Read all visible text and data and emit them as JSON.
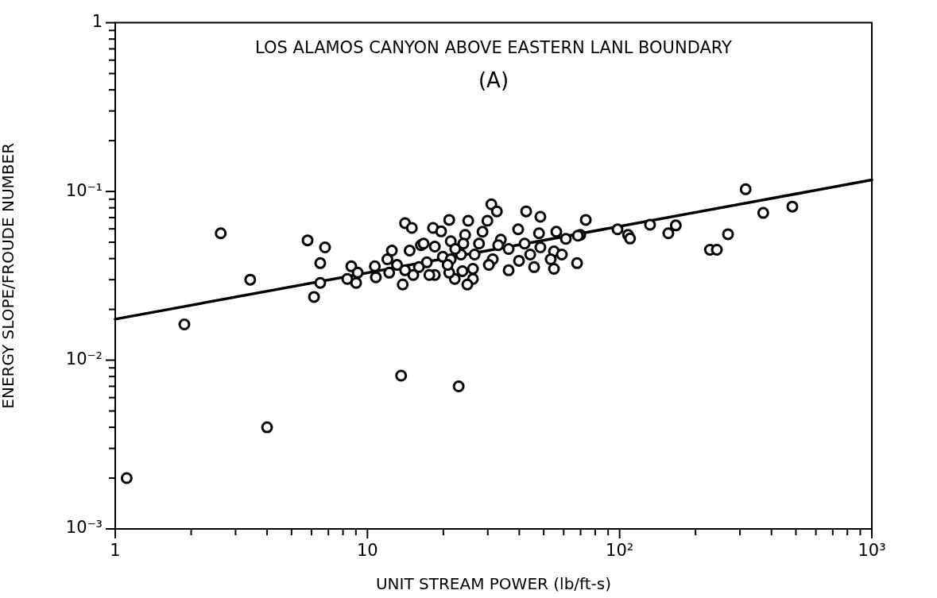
{
  "chart_data": {
    "type": "scatter",
    "title": "LOS ALAMOS CANYON ABOVE EASTERN LANL BOUNDARY",
    "subtitle": "(A)",
    "xlabel": "UNIT STREAM POWER (lb/ft-s)",
    "ylabel": "ENERGY SLOPE/FROUDE NUMBER",
    "log": "xy",
    "grid": false,
    "legend": false,
    "xlim": [
      1,
      1000
    ],
    "ylim": [
      0.001,
      1
    ],
    "xticks": [
      {
        "value": 1,
        "label": "1"
      },
      {
        "value": 2,
        "label": null
      },
      {
        "value": 3,
        "label": null
      },
      {
        "value": 4,
        "label": null
      },
      {
        "value": 5,
        "label": null
      },
      {
        "value": 6,
        "label": null
      },
      {
        "value": 7,
        "label": null
      },
      {
        "value": 8,
        "label": null
      },
      {
        "value": 9,
        "label": null
      },
      {
        "value": 10,
        "label": "10"
      },
      {
        "value": 20,
        "label": null
      },
      {
        "value": 30,
        "label": null
      },
      {
        "value": 40,
        "label": null
      },
      {
        "value": 50,
        "label": null
      },
      {
        "value": 60,
        "label": null
      },
      {
        "value": 70,
        "label": null
      },
      {
        "value": 80,
        "label": null
      },
      {
        "value": 90,
        "label": null
      },
      {
        "value": 100,
        "label": "10²"
      },
      {
        "value": 200,
        "label": null
      },
      {
        "value": 300,
        "label": null
      },
      {
        "value": 400,
        "label": null
      },
      {
        "value": 500,
        "label": null
      },
      {
        "value": 600,
        "label": null
      },
      {
        "value": 700,
        "label": null
      },
      {
        "value": 800,
        "label": null
      },
      {
        "value": 900,
        "label": null
      },
      {
        "value": 1000,
        "label": "10³"
      }
    ],
    "yticks": [
      {
        "value": 0.001,
        "label": "10⁻³"
      },
      {
        "value": 0.002,
        "label": null
      },
      {
        "value": 0.003,
        "label": null
      },
      {
        "value": 0.004,
        "label": null
      },
      {
        "value": 0.005,
        "label": null
      },
      {
        "value": 0.006,
        "label": null
      },
      {
        "value": 0.007,
        "label": null
      },
      {
        "value": 0.008,
        "label": null
      },
      {
        "value": 0.009,
        "label": null
      },
      {
        "value": 0.01,
        "label": "10⁻²"
      },
      {
        "value": 0.02,
        "label": null
      },
      {
        "value": 0.03,
        "label": null
      },
      {
        "value": 0.04,
        "label": null
      },
      {
        "value": 0.05,
        "label": null
      },
      {
        "value": 0.06,
        "label": null
      },
      {
        "value": 0.07,
        "label": null
      },
      {
        "value": 0.08,
        "label": null
      },
      {
        "value": 0.09,
        "label": null
      },
      {
        "value": 0.1,
        "label": "10⁻¹"
      },
      {
        "value": 0.2,
        "label": null
      },
      {
        "value": 0.3,
        "label": null
      },
      {
        "value": 0.4,
        "label": null
      },
      {
        "value": 0.5,
        "label": null
      },
      {
        "value": 0.6,
        "label": null
      },
      {
        "value": 0.7,
        "label": null
      },
      {
        "value": 0.8,
        "label": null
      },
      {
        "value": 0.9,
        "label": null
      },
      {
        "value": 1,
        "label": "1"
      }
    ],
    "series": [
      {
        "type": "scatter",
        "color": "#000000",
        "marker": "circle",
        "x": [
          1.11,
          1.88,
          2.62,
          3.43,
          4.0,
          5.79,
          6.79,
          6.5,
          6.5,
          6.14,
          8.63,
          8.32,
          9.15,
          9.02,
          10.7,
          10.8,
          12.0,
          12.5,
          14.1,
          15.0,
          13.8,
          14.7,
          13.1,
          16.3,
          12.2,
          15.2,
          18.2,
          21.1,
          19.6,
          21.4,
          22.2,
          18.5,
          19.9,
          17.2,
          31.0,
          32.6,
          42.6,
          48.5,
          25.1,
          29.9,
          73.4,
          39.6,
          47.9,
          69.8,
          98.1,
          56.1,
          28.6,
          24.4,
          33.8,
          61.2,
          68.3,
          48.5,
          54.9,
          59.0,
          44.2,
          39.9,
          53.3,
          45.8,
          54.9,
          67.8,
          36.3,
          31.4,
          26.6,
          23.5,
          21.4,
          21.1,
          26.2,
          23.8,
          26.2,
          24.9,
          30.3,
          36.3,
          27.7,
          24.0,
          33.0,
          42.0,
          16.7,
          18.5,
          22.3,
          16.0,
          17.6,
          14.1,
          20.8,
          13.6,
          23.0,
          132,
          108,
          110,
          167,
          156,
          316,
          371,
          484,
          269,
          228,
          243
        ],
        "values": [
          0.002,
          0.0163,
          0.0565,
          0.03,
          0.004,
          0.0513,
          0.0466,
          0.0376,
          0.0287,
          0.0237,
          0.036,
          0.0303,
          0.033,
          0.0287,
          0.036,
          0.031,
          0.0396,
          0.0446,
          0.0649,
          0.0608,
          0.0281,
          0.0446,
          0.0367,
          0.048,
          0.033,
          0.032,
          0.0608,
          0.0678,
          0.058,
          0.0507,
          0.0303,
          0.032,
          0.041,
          0.038,
          0.0839,
          0.0762,
          0.0762,
          0.0708,
          0.067,
          0.067,
          0.0678,
          0.0596,
          0.0565,
          0.0553,
          0.0596,
          0.0577,
          0.0577,
          0.0553,
          0.0518,
          0.0524,
          0.0547,
          0.0466,
          0.0441,
          0.0423,
          0.0423,
          0.0388,
          0.0396,
          0.0356,
          0.0348,
          0.0376,
          0.0341,
          0.0396,
          0.0423,
          0.0423,
          0.0396,
          0.033,
          0.0348,
          0.0337,
          0.0303,
          0.0281,
          0.0367,
          0.0456,
          0.0491,
          0.0491,
          0.048,
          0.0491,
          0.0491,
          0.0471,
          0.0456,
          0.0356,
          0.032,
          0.0341,
          0.0367,
          0.0081,
          0.007,
          0.0635,
          0.0553,
          0.0526,
          0.0629,
          0.0565,
          0.103,
          0.0746,
          0.0813,
          0.0558,
          0.0451,
          0.0451
        ]
      },
      {
        "type": "line",
        "color": "#000000",
        "marker": "none",
        "line_style": "solid",
        "x": [
          1,
          1000
        ],
        "values": [
          0.0175,
          0.117
        ]
      }
    ]
  }
}
